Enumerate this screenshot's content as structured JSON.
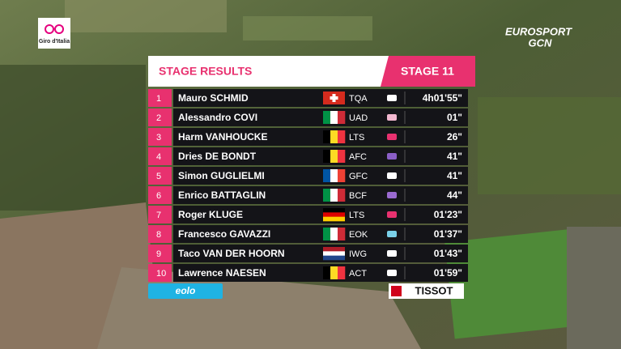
{
  "logos": {
    "giro": "Giro d'Italia",
    "broadcaster": "EUROSPORT",
    "channel": "GCN",
    "sponsor": "eolo",
    "timing": "TISSOT"
  },
  "header": {
    "title": "STAGE RESULTS",
    "stage": "STAGE 11"
  },
  "results": [
    {
      "rank": 1,
      "rider": "Mauro SCHMID",
      "team": "TQA",
      "time": "4h01'55\""
    },
    {
      "rank": 2,
      "rider": "Alessandro COVI",
      "team": "UAD",
      "time": "01\""
    },
    {
      "rank": 3,
      "rider": "Harm VANHOUCKE",
      "team": "LTS",
      "time": "26\""
    },
    {
      "rank": 4,
      "rider": "Dries DE BONDT",
      "team": "AFC",
      "time": "41\""
    },
    {
      "rank": 5,
      "rider": "Simon GUGLIELMI",
      "team": "GFC",
      "time": "41\""
    },
    {
      "rank": 6,
      "rider": "Enrico BATTAGLIN",
      "team": "BCF",
      "time": "44\""
    },
    {
      "rank": 7,
      "rider": "Roger KLUGE",
      "team": "LTS",
      "time": "01'23\""
    },
    {
      "rank": 8,
      "rider": "Francesco GAVAZZI",
      "team": "EOK",
      "time": "01'37\""
    },
    {
      "rank": 9,
      "rider": "Taco VAN DER HOORN",
      "team": "IWG",
      "time": "01'43\""
    },
    {
      "rank": 10,
      "rider": "Lawrence NAESEN",
      "team": "ACT",
      "time": "01'59\""
    }
  ]
}
